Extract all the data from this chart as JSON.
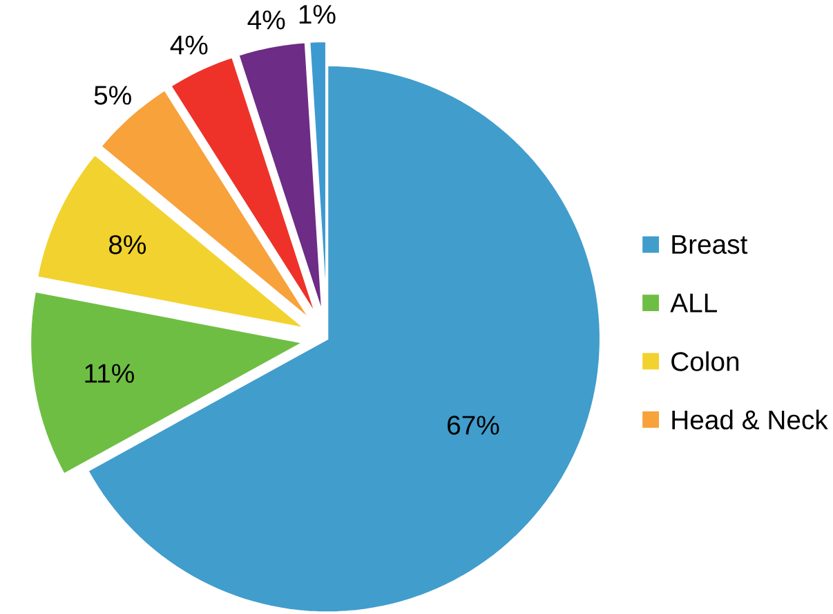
{
  "chart_data": {
    "type": "pie",
    "categories": [
      "Breast",
      "ALL",
      "Colon",
      "Head & Neck",
      null,
      null,
      null
    ],
    "values": [
      67,
      11,
      8,
      5,
      4,
      4,
      1
    ],
    "colors": [
      "#419dcc",
      "#6fbe44",
      "#f2d22e",
      "#f7a23b",
      "#ee3229",
      "#6d2c85",
      "#3d9ad1"
    ],
    "value_labels": [
      "67%",
      "11%",
      "8%",
      "5%",
      "4%",
      "4%",
      "1%"
    ],
    "legend": "right"
  }
}
